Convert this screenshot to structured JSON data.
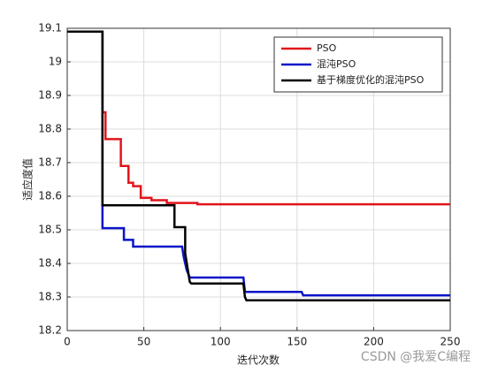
{
  "chart_data": {
    "type": "line",
    "xlabel": "迭代次数",
    "ylabel": "适应度值",
    "xlim": [
      0,
      250
    ],
    "xticks": [
      0,
      50,
      100,
      150,
      200,
      250
    ],
    "ylim": [
      18.2,
      19.1
    ],
    "yticks": [
      18.2,
      18.3,
      18.4,
      18.5,
      18.6,
      18.7,
      18.8,
      18.9,
      19,
      19.1
    ],
    "grid": true,
    "legend": "upper right",
    "series": [
      {
        "name": "PSO",
        "color": "#e0151b",
        "x": [
          0,
          23,
          23,
          25,
          25,
          35,
          35,
          40,
          40,
          43,
          43,
          48,
          48,
          55,
          55,
          65,
          65,
          85,
          85,
          250
        ],
        "values": [
          19.09,
          19.09,
          18.85,
          18.85,
          18.77,
          18.77,
          18.69,
          18.69,
          18.64,
          18.64,
          18.63,
          18.63,
          18.595,
          18.595,
          18.588,
          18.588,
          18.58,
          18.58,
          18.576,
          18.576
        ]
      },
      {
        "name": "混沌PSO",
        "color": "#0a14c8",
        "x": [
          0,
          23,
          23,
          37,
          37,
          43,
          43,
          75,
          76,
          78,
          80,
          115,
          116,
          153,
          154,
          250
        ],
        "values": [
          19.09,
          19.09,
          18.505,
          18.505,
          18.47,
          18.47,
          18.45,
          18.45,
          18.42,
          18.38,
          18.358,
          18.358,
          18.315,
          18.315,
          18.305,
          18.305
        ]
      },
      {
        "name": "基于梯度优化的混沌PSO",
        "color": "#000000",
        "x": [
          0,
          23,
          23,
          70,
          70,
          77,
          77,
          80,
          81,
          115,
          116,
          117,
          250
        ],
        "values": [
          19.09,
          19.09,
          18.573,
          18.573,
          18.508,
          18.508,
          18.43,
          18.345,
          18.34,
          18.34,
          18.3,
          18.29,
          18.29
        ]
      }
    ],
    "watermark": "CSDN @我爱C编程"
  }
}
